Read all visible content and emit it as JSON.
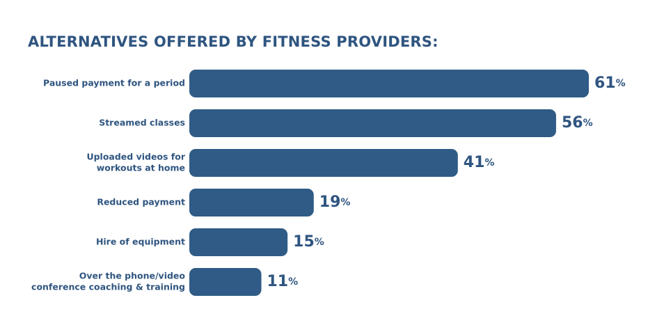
{
  "colors": {
    "bar": "#2f5b86",
    "text": "#2f5580"
  },
  "chart_data": {
    "type": "bar",
    "orientation": "horizontal",
    "title": "ALTERNATIVES OFFERED BY FITNESS PROVIDERS:",
    "unit": "%",
    "categories": [
      [
        "Paused payment for a period"
      ],
      [
        "Streamed classes"
      ],
      [
        "Uploaded videos for",
        "workouts at home"
      ],
      [
        "Reduced payment"
      ],
      [
        "Hire of equipment"
      ],
      [
        "Over the phone/video",
        "conference coaching & training"
      ]
    ],
    "values": [
      61,
      56,
      41,
      19,
      15,
      11
    ],
    "xlim": [
      0,
      61
    ],
    "grid": false,
    "legend": "none"
  }
}
